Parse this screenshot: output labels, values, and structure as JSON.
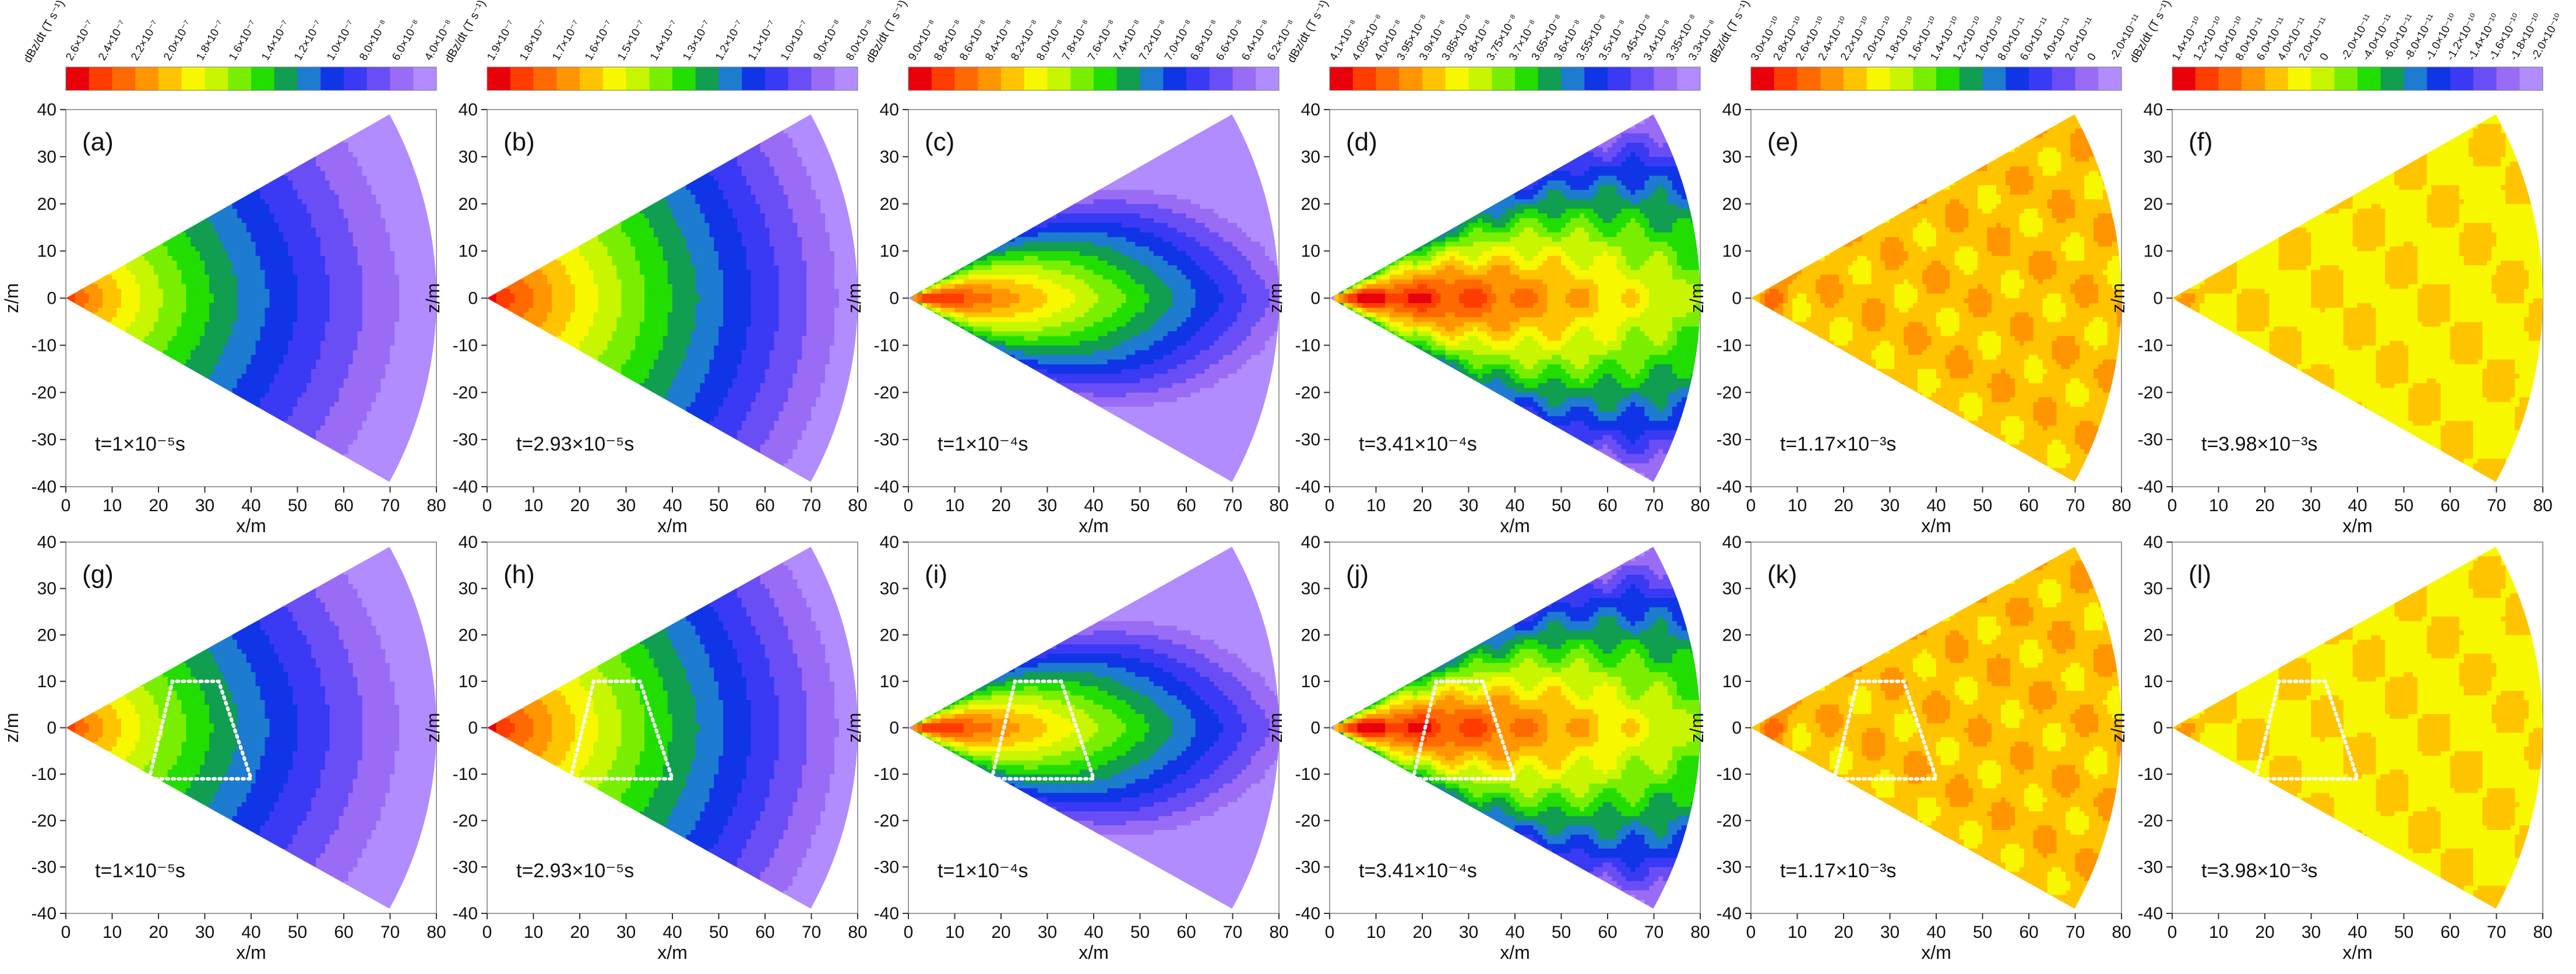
{
  "figure": {
    "description_title": "Contour plots of dBz/dt on a fan-shaped vertical section",
    "colorbar_unit": "dBz/dt (T s⁻¹)",
    "x_axis_label": "x/m",
    "y_axis_label": "z/m",
    "x_ticks": [
      0,
      10,
      20,
      30,
      40,
      50,
      60,
      70,
      80
    ],
    "y_ticks": [
      40,
      30,
      20,
      10,
      0,
      -10,
      -20,
      -30,
      -40
    ],
    "xlim": [
      0,
      80
    ],
    "ylim": [
      -40,
      40
    ],
    "anomaly_box_label": "dotted trapezoid anomaly outline (bottom row)"
  },
  "chart_data": [
    {
      "type": "heatmap",
      "panel": "(a)",
      "time_label": "t=1×10⁻⁵s",
      "colorbar_ticks": [
        "2.6×10⁻⁷",
        "2.4×10⁻⁷",
        "2.2×10⁻⁷",
        "2.0×10⁻⁷",
        "1.8×10⁻⁷",
        "1.6×10⁻⁷",
        "1.4×10⁻⁷",
        "1.2×10⁻⁷",
        "1.0×10⁻⁷",
        "8.0×10⁻⁸",
        "6.0×10⁻⁸",
        "4.0×10⁻⁸"
      ],
      "field": "smooth-decay",
      "xlabel": "x/m",
      "ylabel": "z/m",
      "xlim": [
        0,
        80
      ],
      "ylim": [
        -40,
        40
      ]
    },
    {
      "type": "heatmap",
      "panel": "(b)",
      "time_label": "t=2.93×10⁻⁵s",
      "colorbar_ticks": [
        "1.9×10⁻⁷",
        "1.8×10⁻⁷",
        "1.7×10⁻⁷",
        "1.6×10⁻⁷",
        "1.5×10⁻⁷",
        "1.4×10⁻⁷",
        "1.3×10⁻⁷",
        "1.2×10⁻⁷",
        "1.1×10⁻⁷",
        "1.0×10⁻⁷",
        "9.0×10⁻⁸",
        "8.0×10⁻⁸"
      ],
      "field": "smooth-decay-wide",
      "xlabel": "x/m",
      "ylabel": "z/m",
      "xlim": [
        0,
        80
      ],
      "ylim": [
        -40,
        40
      ]
    },
    {
      "type": "heatmap",
      "panel": "(c)",
      "time_label": "t=1×10⁻⁴s",
      "colorbar_ticks": [
        "9.0×10⁻⁸",
        "8.8×10⁻⁸",
        "8.6×10⁻⁸",
        "8.4×10⁻⁸",
        "8.2×10⁻⁸",
        "8.0×10⁻⁸",
        "7.8×10⁻⁸",
        "7.6×10⁻⁸",
        "7.4×10⁻⁸",
        "7.2×10⁻⁸",
        "7.0×10⁻⁸",
        "6.8×10⁻⁸",
        "6.6×10⁻⁸",
        "6.4×10⁻⁸",
        "6.2×10⁻⁸"
      ],
      "field": "elongated",
      "xlabel": "x/m",
      "ylabel": "z/m",
      "xlim": [
        0,
        80
      ],
      "ylim": [
        -40,
        40
      ]
    },
    {
      "type": "heatmap",
      "panel": "(d)",
      "time_label": "t=3.41×10⁻⁴s",
      "colorbar_ticks": [
        "4.1×10⁻⁸",
        "4.05×10⁻⁸",
        "4.0×10⁻⁸",
        "3.95×10⁻⁸",
        "3.9×10⁻⁸",
        "3.85×10⁻⁸",
        "3.8×10⁻⁸",
        "3.75×10⁻⁸",
        "3.7×10⁻⁸",
        "3.65×10⁻⁸",
        "3.6×10⁻⁸",
        "3.55×10⁻⁸",
        "3.5×10⁻⁸",
        "3.45×10⁻⁸",
        "3.4×10⁻⁸",
        "3.35×10⁻⁸",
        "3.3×10⁻⁸"
      ],
      "field": "elongated-blobs",
      "xlabel": "x/m",
      "ylabel": "z/m",
      "xlim": [
        0,
        80
      ],
      "ylim": [
        -40,
        40
      ]
    },
    {
      "type": "heatmap",
      "panel": "(e)",
      "time_label": "t=1.17×10⁻³s",
      "colorbar_ticks": [
        "3.0×10⁻¹⁰",
        "2.8×10⁻¹⁰",
        "2.6×10⁻¹⁰",
        "2.4×10⁻¹⁰",
        "2.2×10⁻¹⁰",
        "2.0×10⁻¹⁰",
        "1.8×10⁻¹⁰",
        "1.6×10⁻¹⁰",
        "1.4×10⁻¹⁰",
        "1.2×10⁻¹⁰",
        "1.0×10⁻¹⁰",
        "8.0×10⁻¹¹",
        "6.0×10⁻¹¹",
        "4.0×10⁻¹¹",
        "2.0×10⁻¹¹",
        "0",
        "-2.0×10⁻¹¹"
      ],
      "field": "noisy",
      "xlabel": "x/m",
      "ylabel": "z/m",
      "xlim": [
        0,
        80
      ],
      "ylim": [
        -40,
        40
      ]
    },
    {
      "type": "heatmap",
      "panel": "(f)",
      "time_label": "t=3.98×10⁻³s",
      "colorbar_ticks": [
        "1.4×10⁻¹⁰",
        "1.2×10⁻¹⁰",
        "1.0×10⁻¹⁰",
        "8.0×10⁻¹¹",
        "6.0×10⁻¹¹",
        "4.0×10⁻¹¹",
        "2.0×10⁻¹¹",
        "0",
        "-2.0×10⁻¹¹",
        "-4.0×10⁻¹¹",
        "-6.0×10⁻¹¹",
        "-8.0×10⁻¹¹",
        "-1.0×10⁻¹⁰",
        "-1.2×10⁻¹⁰",
        "-1.4×10⁻¹⁰",
        "-1.6×10⁻¹⁰",
        "-1.8×10⁻¹⁰",
        "-2.0×10⁻¹⁰"
      ],
      "field": "noisy-late",
      "xlabel": "x/m",
      "ylabel": "z/m",
      "xlim": [
        0,
        80
      ],
      "ylim": [
        -40,
        40
      ]
    },
    {
      "type": "heatmap",
      "panel": "(g)",
      "time_label": "t=1×10⁻⁵s",
      "field": "smooth-decay",
      "anomaly": true,
      "xlabel": "x/m",
      "ylabel": "z/m",
      "xlim": [
        0,
        80
      ],
      "ylim": [
        -40,
        40
      ]
    },
    {
      "type": "heatmap",
      "panel": "(h)",
      "time_label": "t=2.93×10⁻⁵s",
      "field": "smooth-decay-wide",
      "anomaly": true,
      "xlabel": "x/m",
      "ylabel": "z/m",
      "xlim": [
        0,
        80
      ],
      "ylim": [
        -40,
        40
      ]
    },
    {
      "type": "heatmap",
      "panel": "(i)",
      "time_label": "t=1×10⁻⁴s",
      "field": "elongated",
      "anomaly": true,
      "xlabel": "x/m",
      "ylabel": "z/m",
      "xlim": [
        0,
        80
      ],
      "ylim": [
        -40,
        40
      ]
    },
    {
      "type": "heatmap",
      "panel": "(j)",
      "time_label": "t=3.41×10⁻⁴s",
      "field": "elongated-blobs",
      "anomaly": true,
      "xlabel": "x/m",
      "ylabel": "z/m",
      "xlim": [
        0,
        80
      ],
      "ylim": [
        -40,
        40
      ]
    },
    {
      "type": "heatmap",
      "panel": "(k)",
      "time_label": "t=1.17×10⁻³s",
      "field": "noisy",
      "anomaly": true,
      "xlabel": "x/m",
      "ylabel": "z/m",
      "xlim": [
        0,
        80
      ],
      "ylim": [
        -40,
        40
      ]
    },
    {
      "type": "heatmap",
      "panel": "(l)",
      "time_label": "t=3.98×10⁻³s",
      "field": "noisy-late",
      "anomaly": true,
      "xlabel": "x/m",
      "ylabel": "z/m",
      "xlim": [
        0,
        80
      ],
      "ylim": [
        -40,
        40
      ]
    }
  ],
  "colors": {
    "palette": [
      "#e8000b",
      "#ff3d00",
      "#ff6a00",
      "#ff9500",
      "#ffc400",
      "#f7f700",
      "#c8f500",
      "#7aee00",
      "#22dd00",
      "#119e50",
      "#1d7bd0",
      "#1035e6",
      "#3a3af5",
      "#6a4ef5",
      "#9a6cf5",
      "#b08cff"
    ],
    "anomaly_outline": "#ffffff",
    "axis": "#222222"
  }
}
